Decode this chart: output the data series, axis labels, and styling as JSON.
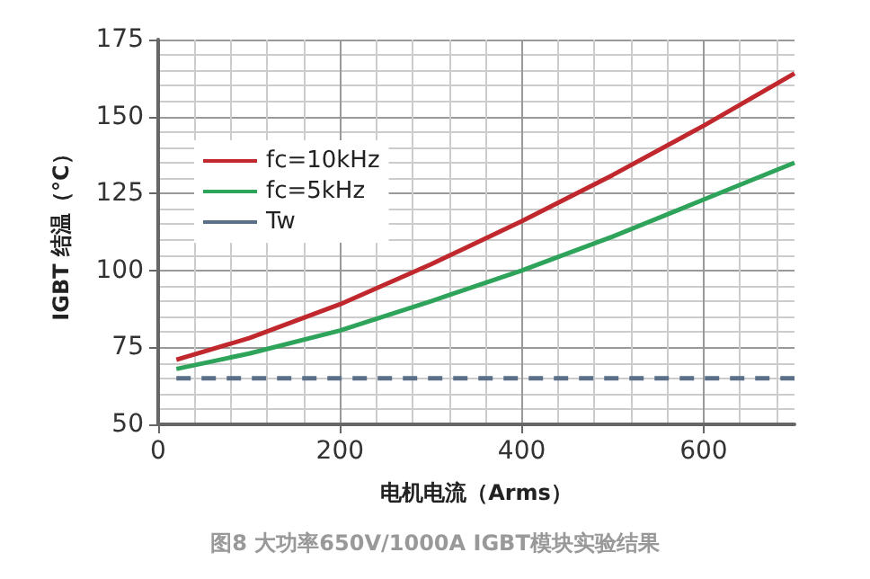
{
  "chart_data": {
    "type": "line",
    "xlabel": "电机电流（Arms）",
    "ylabel": "IGBT 结温（°C）",
    "annotations": [
      "图8 大功率650V/1000A IGBT模块实验结果"
    ],
    "xlim": [
      0,
      700
    ],
    "xticks": [
      0,
      200,
      400,
      600
    ],
    "ylim": [
      50,
      175
    ],
    "yticks": [
      50,
      75,
      100,
      125,
      150,
      175
    ],
    "grid": true,
    "legend": "top left",
    "marker": "none",
    "series": [
      {
        "name": "fc=10kHz",
        "color": "#c0282d",
        "x": [
          20,
          100,
          200,
          300,
          400,
          500,
          600,
          700
        ],
        "values": [
          71,
          78,
          89,
          102,
          116,
          131,
          147,
          164
        ]
      },
      {
        "name": "fc=5kHz",
        "color": "#2ea35a",
        "x": [
          20,
          100,
          200,
          300,
          400,
          500,
          600,
          700
        ],
        "values": [
          68,
          73,
          80.5,
          90,
          100,
          111,
          123,
          135
        ]
      },
      {
        "name": "Tw",
        "color": "#5a7088",
        "line_style": "dashed",
        "x": [
          20,
          700
        ],
        "values": [
          65,
          65
        ]
      }
    ]
  }
}
